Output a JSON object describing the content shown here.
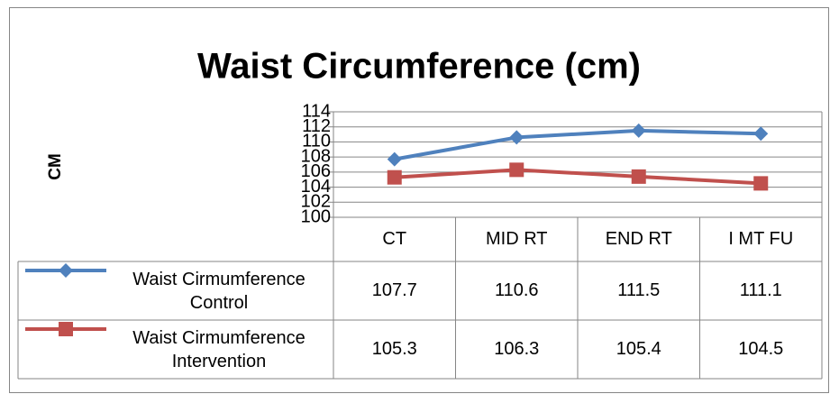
{
  "chart_data": {
    "type": "line",
    "title": "Waist Circumference (cm)",
    "y_label": "CM",
    "categories": [
      "CT",
      "MID RT",
      "END RT",
      "I MT FU"
    ],
    "series": [
      {
        "name": "Waist Cirmumference Control",
        "color": "#4f81bd",
        "marker": "diamond",
        "values": [
          107.7,
          110.6,
          111.5,
          111.1
        ]
      },
      {
        "name": "Waist Cirmumference Intervention",
        "color": "#c0504d",
        "marker": "square",
        "values": [
          105.3,
          106.3,
          105.4,
          104.5
        ]
      }
    ],
    "ylim": [
      100,
      114
    ],
    "yticks": [
      100,
      102,
      104,
      106,
      108,
      110,
      112,
      114
    ],
    "grid": true,
    "data_table": true
  }
}
